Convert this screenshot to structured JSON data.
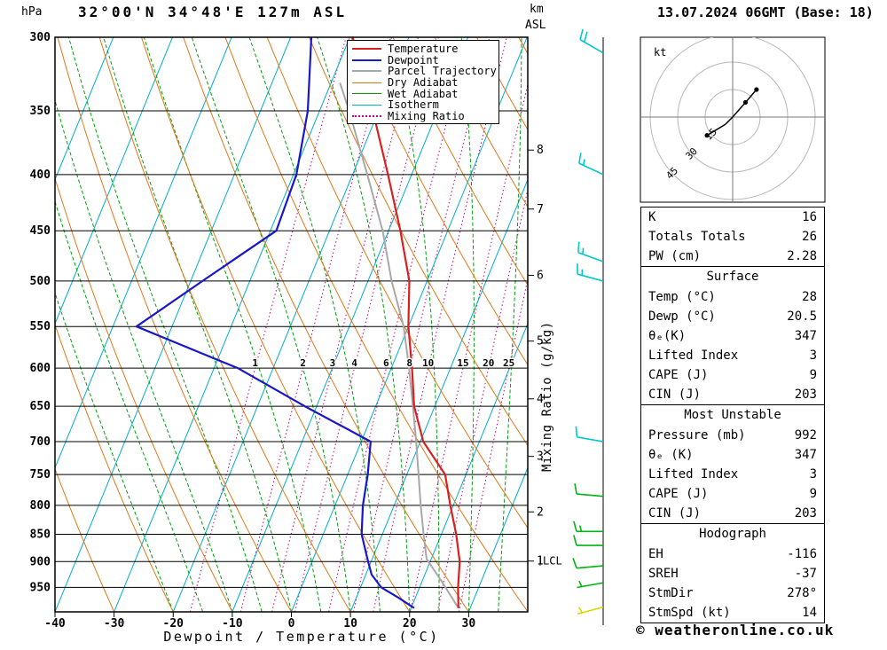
{
  "header": {
    "pressure_unit": "hPa",
    "title": "32°00'N 34°48'E 127m ASL",
    "km_unit": "km",
    "asl_unit": "ASL",
    "datetime": "13.07.2024 06GMT (Base: 18)"
  },
  "colors": {
    "temperature": "#D82020",
    "dewpoint": "#1818C8",
    "parcel": "#A8A8A8",
    "dry_adiabat": "#E07818",
    "wet_adiabat": "#00A010",
    "isotherm": "#00AECC",
    "mixing_ratio": "#C8008C",
    "wind_cyan": "#00C8C8",
    "wind_green": "#00B414",
    "wind_yellow": "#D8D800"
  },
  "legend": {
    "items": [
      {
        "label": "Temperature",
        "color": "#D82020",
        "style": "solid",
        "weight": 2
      },
      {
        "label": "Dewpoint",
        "color": "#1818C8",
        "style": "solid",
        "weight": 2
      },
      {
        "label": "Parcel Trajectory",
        "color": "#A8A8A8",
        "style": "solid",
        "weight": 2
      },
      {
        "label": "Dry Adiabat",
        "color": "#E07818",
        "style": "solid",
        "weight": 1
      },
      {
        "label": "Wet Adiabat",
        "color": "#00A010",
        "style": "solid",
        "weight": 1
      },
      {
        "label": "Isotherm",
        "color": "#00AECC",
        "style": "solid",
        "weight": 1
      },
      {
        "label": "Mixing Ratio",
        "color": "#C8008C",
        "style": "dotted",
        "weight": 2
      }
    ]
  },
  "axes": {
    "pressure_ticks": [
      300,
      350,
      400,
      450,
      500,
      550,
      600,
      650,
      700,
      750,
      800,
      850,
      900,
      950
    ],
    "temp_ticks": [
      -40,
      -30,
      -20,
      -10,
      0,
      10,
      20,
      30
    ],
    "xlabel": "Dewpoint / Temperature (°C)",
    "km_ticks": [
      8,
      7,
      6,
      5,
      4,
      3,
      2,
      1
    ],
    "lcl_label": "LCL",
    "mixing_ratio_label": "Mixing Ratio (g/kg)",
    "mixing_ratio_values": [
      1,
      2,
      3,
      4,
      6,
      8,
      10,
      15,
      20,
      25
    ]
  },
  "chart_data": {
    "type": "skewt-log-p",
    "pressure_range": [
      300,
      1000
    ],
    "surface_temp_axis_range": [
      -40,
      40
    ],
    "lcl_pressure": 899,
    "temperature_profile": [
      [
        992,
        28
      ],
      [
        950,
        26.5
      ],
      [
        900,
        25
      ],
      [
        850,
        22.5
      ],
      [
        800,
        19.5
      ],
      [
        750,
        16.5
      ],
      [
        700,
        10.5
      ],
      [
        650,
        6.5
      ],
      [
        600,
        3.5
      ],
      [
        550,
        0
      ],
      [
        500,
        -3
      ],
      [
        450,
        -8
      ],
      [
        400,
        -14
      ],
      [
        350,
        -21
      ],
      [
        300,
        -29.5
      ]
    ],
    "dewpoint_profile": [
      [
        992,
        20.5
      ],
      [
        970,
        17
      ],
      [
        950,
        13.5
      ],
      [
        925,
        11
      ],
      [
        900,
        9.5
      ],
      [
        850,
        6.5
      ],
      [
        800,
        4.7
      ],
      [
        750,
        3.4
      ],
      [
        700,
        1.6
      ],
      [
        650,
        -12
      ],
      [
        600,
        -26
      ],
      [
        550,
        -46
      ],
      [
        500,
        -38
      ],
      [
        450,
        -29
      ],
      [
        400,
        -29.5
      ],
      [
        350,
        -32
      ],
      [
        300,
        -36.5
      ]
    ],
    "parcel_profile": [
      [
        992,
        28
      ],
      [
        940,
        23.5
      ],
      [
        895,
        19.2
      ],
      [
        850,
        17
      ],
      [
        800,
        14.5
      ],
      [
        750,
        12
      ],
      [
        700,
        9.3
      ],
      [
        650,
        6.3
      ],
      [
        600,
        3
      ],
      [
        550,
        -0.8
      ],
      [
        500,
        -6
      ],
      [
        450,
        -11
      ],
      [
        400,
        -17.5
      ],
      [
        350,
        -25
      ],
      [
        330,
        -28.5
      ]
    ],
    "wind_barbs": [
      {
        "p": 310,
        "color": "cyan",
        "dir": 300,
        "speed": 20
      },
      {
        "p": 400,
        "color": "cyan",
        "dir": 295,
        "speed": 15
      },
      {
        "p": 480,
        "color": "cyan",
        "dir": 290,
        "speed": 15
      },
      {
        "p": 500,
        "color": "cyan",
        "dir": 285,
        "speed": 15
      },
      {
        "p": 700,
        "color": "cyan",
        "dir": 280,
        "speed": 10
      },
      {
        "p": 785,
        "color": "green",
        "dir": 275,
        "speed": 10
      },
      {
        "p": 845,
        "color": "green",
        "dir": 270,
        "speed": 15
      },
      {
        "p": 870,
        "color": "green",
        "dir": 270,
        "speed": 10
      },
      {
        "p": 908,
        "color": "green",
        "dir": 265,
        "speed": 10
      },
      {
        "p": 941,
        "color": "green",
        "dir": 260,
        "speed": 5
      },
      {
        "p": 990,
        "color": "yellow",
        "dir": 255,
        "speed": 5
      }
    ]
  },
  "hodograph": {
    "unit_label": "kt",
    "ring_labels": [
      15,
      30,
      45
    ],
    "ring_step_kt": 15,
    "trace": [
      [
        -14,
        -10
      ],
      [
        -4,
        -4
      ],
      [
        0,
        0
      ],
      [
        7,
        8
      ],
      [
        13,
        15
      ]
    ],
    "dot_indices": [
      0,
      3,
      4
    ]
  },
  "table": {
    "summary_rows": [
      [
        "K",
        "16"
      ],
      [
        "Totals Totals",
        "26"
      ],
      [
        "PW (cm)",
        "2.28"
      ]
    ],
    "sections": [
      {
        "header": "Surface",
        "rows": [
          [
            "Temp (°C)",
            "28"
          ],
          [
            "Dewp (°C)",
            "20.5"
          ],
          [
            "θₑ(K)",
            "347"
          ],
          [
            "Lifted Index",
            "3"
          ],
          [
            "CAPE (J)",
            "9"
          ],
          [
            "CIN (J)",
            "203"
          ]
        ]
      },
      {
        "header": "Most Unstable",
        "rows": [
          [
            "Pressure (mb)",
            "992"
          ],
          [
            "θₑ (K)",
            "347"
          ],
          [
            "Lifted Index",
            "3"
          ],
          [
            "CAPE (J)",
            "9"
          ],
          [
            "CIN (J)",
            "203"
          ]
        ]
      },
      {
        "header": "Hodograph",
        "rows": [
          [
            "EH",
            "-116"
          ],
          [
            "SREH",
            "-37"
          ],
          [
            "StmDir",
            "278°"
          ],
          [
            "StmSpd (kt)",
            "14"
          ]
        ]
      }
    ]
  },
  "copyright": "© weatheronline.co.uk"
}
